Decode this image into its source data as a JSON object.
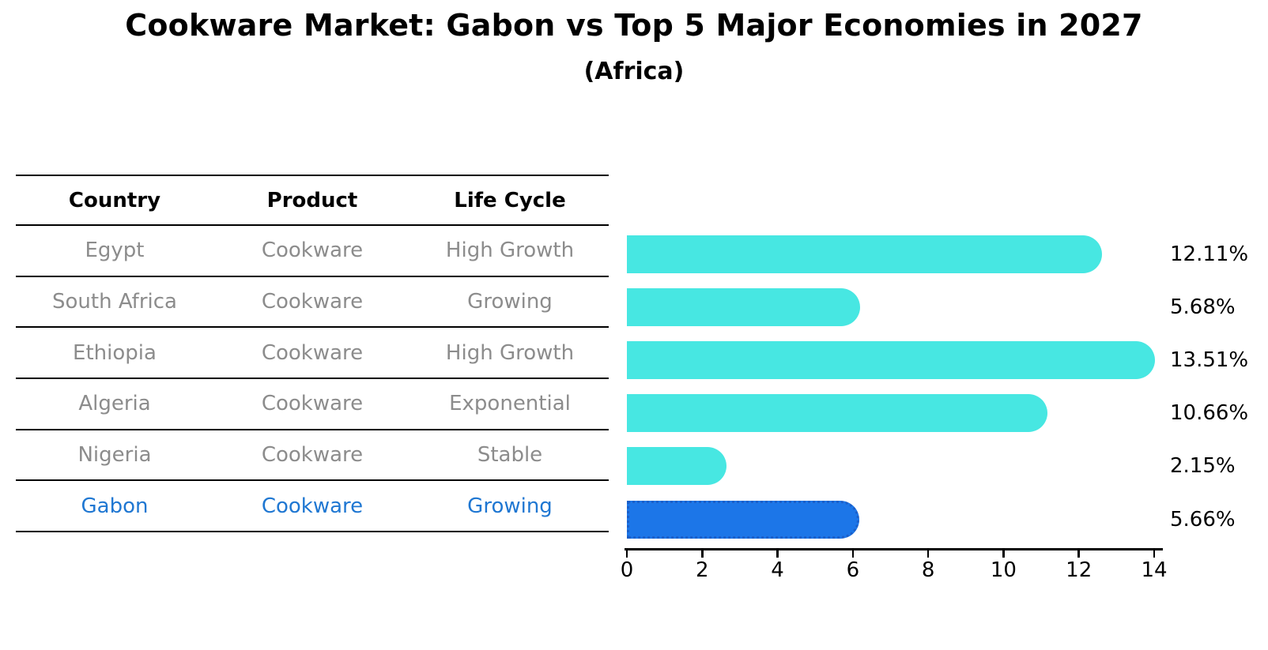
{
  "title": "Cookware Market: Gabon vs Top 5 Major Economies in 2027",
  "subtitle": "(Africa)",
  "table": {
    "headers": [
      "Country",
      "Product",
      "Life Cycle"
    ],
    "rows": [
      {
        "country": "Egypt",
        "product": "Cookware",
        "life_cycle": "High Growth",
        "highlight": false
      },
      {
        "country": "South Africa",
        "product": "Cookware",
        "life_cycle": "Growing",
        "highlight": false
      },
      {
        "country": "Ethiopia",
        "product": "Cookware",
        "life_cycle": "High Growth",
        "highlight": false
      },
      {
        "country": "Algeria",
        "product": "Cookware",
        "life_cycle": "Exponential",
        "highlight": false
      },
      {
        "country": "Nigeria",
        "product": "Cookware",
        "life_cycle": "Stable",
        "highlight": false
      },
      {
        "country": "Gabon",
        "product": "Cookware",
        "life_cycle": "Growing",
        "highlight": true
      }
    ]
  },
  "chart_data": {
    "type": "bar",
    "orientation": "horizontal",
    "title": "Cookware Market: Gabon vs Top 5 Major Economies in 2027",
    "subtitle": "(Africa)",
    "categories": [
      "Egypt",
      "South Africa",
      "Ethiopia",
      "Algeria",
      "Nigeria",
      "Gabon"
    ],
    "values": [
      12.11,
      5.68,
      13.51,
      10.66,
      2.15,
      5.66
    ],
    "value_labels": [
      "12.11%",
      "5.68%",
      "13.51%",
      "10.66%",
      "2.15%",
      "5.66%"
    ],
    "unit": "%",
    "xlim": [
      0,
      14
    ],
    "x_ticks": [
      0,
      2,
      4,
      6,
      8,
      10,
      12,
      14
    ],
    "grid": false,
    "legend": false,
    "highlight_category": "Gabon",
    "colors": {
      "bar": "#47e7e2",
      "highlight_bar": "#1c76e8",
      "highlight_border": "#1b5fc9",
      "highlight_text": "#1f77d2",
      "row_text": "#8c8c8c",
      "line": "#000000"
    }
  }
}
